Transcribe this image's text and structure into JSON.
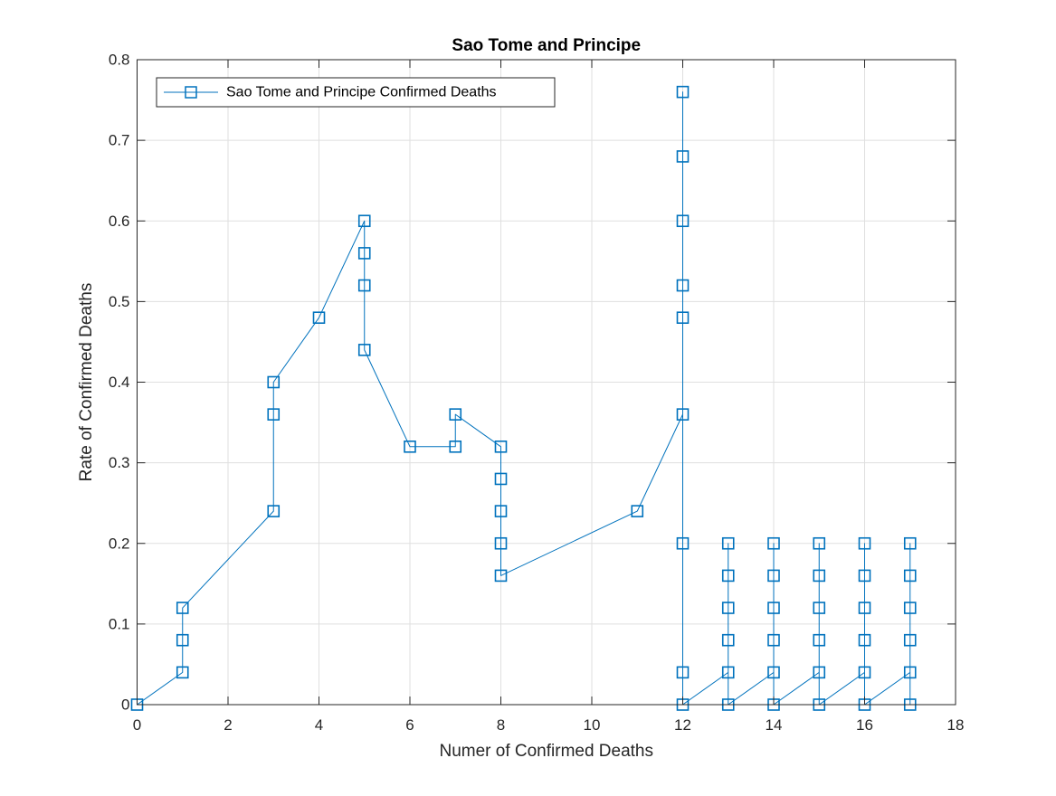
{
  "chart_data": {
    "type": "line",
    "title": "Sao Tome and Principe",
    "xlabel": "Numer of Confirmed Deaths",
    "ylabel": "Rate of Confirmed Deaths",
    "xlim": [
      0,
      18
    ],
    "ylim": [
      0,
      0.8
    ],
    "xticks": [
      0,
      2,
      4,
      6,
      8,
      10,
      12,
      14,
      16,
      18
    ],
    "xtick_labels": [
      "0",
      "2",
      "4",
      "6",
      "8",
      "10",
      "12",
      "14",
      "16",
      "18"
    ],
    "yticks": [
      0,
      0.1,
      0.2,
      0.3,
      0.4,
      0.5,
      0.6,
      0.7,
      0.8
    ],
    "ytick_labels": [
      "0",
      "0.1",
      "0.2",
      "0.3",
      "0.4",
      "0.5",
      "0.6",
      "0.7",
      "0.8"
    ],
    "grid": true,
    "box": true,
    "legend_position": "top-left",
    "marker": "square",
    "series": [
      {
        "name": "Sao Tome and Principe Confirmed Deaths",
        "color": "#0072BD",
        "x": [
          0,
          1,
          1,
          1,
          3,
          3,
          3,
          4,
          5,
          5,
          5,
          5,
          6,
          7,
          7,
          8,
          8,
          8,
          8,
          8,
          11,
          12,
          12,
          12,
          12,
          12,
          12,
          12,
          12,
          12,
          13,
          13,
          13,
          13,
          13,
          13,
          14,
          14,
          14,
          14,
          14,
          14,
          15,
          15,
          15,
          15,
          15,
          15,
          16,
          16,
          16,
          16,
          16,
          16,
          17,
          17,
          17,
          17,
          17,
          17
        ],
        "y": [
          0,
          0.04,
          0.08,
          0.12,
          0.24,
          0.36,
          0.4,
          0.48,
          0.6,
          0.56,
          0.52,
          0.44,
          0.32,
          0.32,
          0.36,
          0.32,
          0.28,
          0.24,
          0.2,
          0.16,
          0.24,
          0.36,
          0.48,
          0.52,
          0.6,
          0.68,
          0.76,
          0.2,
          0.04,
          0,
          0.04,
          0.08,
          0.12,
          0.16,
          0.2,
          0,
          0.04,
          0.08,
          0.12,
          0.16,
          0.2,
          0,
          0.04,
          0.08,
          0.12,
          0.16,
          0.2,
          0,
          0.04,
          0.08,
          0.12,
          0.16,
          0.2,
          0,
          0.04,
          0.08,
          0.12,
          0.16,
          0.2,
          0
        ]
      }
    ]
  }
}
